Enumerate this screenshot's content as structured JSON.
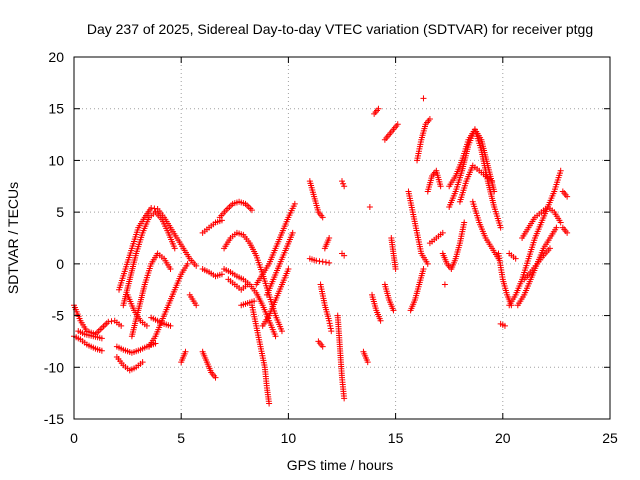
{
  "chart_data": {
    "type": "scatter",
    "title": "Day 237 of 2025, Sidereal Day-to-day VTEC variation (SDTVAR) for receiver ptgg",
    "xlabel": "GPS time / hours",
    "ylabel": "SDTVAR / TECUs",
    "xlim": [
      0,
      25
    ],
    "ylim": [
      -15,
      20
    ],
    "xticks": [
      0,
      5,
      10,
      15,
      20,
      25
    ],
    "yticks": [
      -15,
      -10,
      -5,
      0,
      5,
      10,
      15,
      20
    ],
    "grid": true,
    "marker": "plus",
    "marker_color": "#ff0000",
    "segments": [
      {
        "x": [
          0.0,
          0.3,
          0.6,
          1.0,
          1.3,
          1.6,
          1.9,
          2.2
        ],
        "y": [
          -4.0,
          -5.5,
          -6.5,
          -6.8,
          -6.2,
          -5.6,
          -5.5,
          -6.0
        ]
      },
      {
        "x": [
          0.0,
          0.3,
          0.6,
          1.0,
          1.3
        ],
        "y": [
          -7.0,
          -7.3,
          -7.8,
          -8.2,
          -8.4
        ]
      },
      {
        "x": [
          0.2,
          0.5,
          0.9,
          1.3
        ],
        "y": [
          -6.5,
          -6.8,
          -7.0,
          -7.2
        ]
      },
      {
        "x": [
          2.0,
          2.3,
          2.6,
          2.9,
          3.2
        ],
        "y": [
          -9.0,
          -9.8,
          -10.3,
          -10.0,
          -9.5
        ]
      },
      {
        "x": [
          2.0,
          2.3,
          2.7,
          3.1,
          3.4,
          3.8
        ],
        "y": [
          -8.0,
          -8.3,
          -8.6,
          -8.3,
          -8.0,
          -7.7
        ]
      },
      {
        "x": [
          2.1,
          2.4,
          2.7,
          3.0,
          3.3,
          3.6,
          3.9,
          4.2,
          4.5,
          4.8,
          5.1,
          5.4,
          5.7
        ],
        "y": [
          -2.5,
          -0.5,
          1.5,
          3.5,
          4.5,
          5.4,
          5.3,
          4.5,
          3.5,
          2.5,
          1.5,
          0.5,
          -0.2
        ]
      },
      {
        "x": [
          2.3,
          2.6,
          2.9,
          3.2,
          3.5,
          3.8,
          4.1,
          4.4,
          4.7
        ],
        "y": [
          -4.0,
          -1.5,
          1.0,
          3.0,
          4.5,
          5.0,
          4.3,
          3.0,
          1.5
        ]
      },
      {
        "x": [
          2.7,
          3.0,
          3.3,
          3.6,
          3.9,
          4.2,
          4.5
        ],
        "y": [
          -7.0,
          -4.5,
          -2.0,
          0.0,
          1.0,
          0.5,
          -0.5
        ]
      },
      {
        "x": [
          2.5,
          2.8,
          3.1,
          3.4
        ],
        "y": [
          -3.0,
          -4.5,
          -5.5,
          -6.0
        ]
      },
      {
        "x": [
          3.5,
          3.8,
          4.1,
          4.4,
          4.7,
          5.0,
          5.3
        ],
        "y": [
          -8.0,
          -7.0,
          -5.5,
          -4.0,
          -2.5,
          -1.0,
          0.0
        ]
      },
      {
        "x": [
          3.6,
          3.9,
          4.2,
          4.5
        ],
        "y": [
          -5.2,
          -5.5,
          -5.8,
          -6.0
        ]
      },
      {
        "x": [
          5.0,
          5.2
        ],
        "y": [
          -9.5,
          -8.5
        ]
      },
      {
        "x": [
          5.4,
          5.7
        ],
        "y": [
          -3.0,
          -4.0
        ]
      },
      {
        "x": [
          6.0,
          6.2,
          6.4,
          6.6
        ],
        "y": [
          -8.5,
          -9.5,
          -10.5,
          -11.0
        ]
      },
      {
        "x": [
          6.0,
          6.3,
          6.6,
          6.9
        ],
        "y": [
          3.0,
          3.5,
          4.0,
          4.2
        ]
      },
      {
        "x": [
          6.0,
          6.3,
          6.6,
          6.9
        ],
        "y": [
          -0.5,
          -0.8,
          -1.2,
          -1.0
        ]
      },
      {
        "x": [
          6.8,
          7.1,
          7.4,
          7.7,
          8.0,
          8.3
        ],
        "y": [
          4.5,
          5.2,
          5.8,
          6.0,
          5.8,
          5.2
        ]
      },
      {
        "x": [
          7.0,
          7.3,
          7.6,
          7.9,
          8.2,
          8.5,
          8.8,
          9.1,
          9.4,
          9.7
        ],
        "y": [
          1.5,
          2.5,
          3.0,
          2.8,
          2.0,
          0.8,
          -1.0,
          -3.0,
          -5.0,
          -6.5
        ]
      },
      {
        "x": [
          7.0,
          7.3,
          7.6,
          7.9,
          8.2,
          8.5,
          8.8,
          9.1,
          9.4
        ],
        "y": [
          -0.5,
          -0.8,
          -1.2,
          -1.5,
          -2.0,
          -2.8,
          -4.0,
          -5.5,
          -7.0
        ]
      },
      {
        "x": [
          7.2,
          7.5,
          7.8,
          8.1
        ],
        "y": [
          -1.5,
          -2.0,
          -2.5,
          -2.0
        ]
      },
      {
        "x": [
          8.3,
          8.5,
          8.7,
          8.9,
          9.0,
          9.1
        ],
        "y": [
          -4.0,
          -6.0,
          -8.0,
          -10.0,
          -12.0,
          -13.5
        ]
      },
      {
        "x": [
          8.5,
          8.8,
          9.1,
          9.4,
          9.7,
          10.0,
          10.3
        ],
        "y": [
          -2.0,
          -1.0,
          0.0,
          1.5,
          3.0,
          4.5,
          5.8
        ]
      },
      {
        "x": [
          8.8,
          9.1,
          9.4,
          9.7,
          10.0
        ],
        "y": [
          -6.0,
          -5.0,
          -3.5,
          -2.0,
          -0.5
        ]
      },
      {
        "x": [
          9.0,
          9.3,
          9.6,
          9.9,
          10.2
        ],
        "y": [
          -3.0,
          -1.5,
          0.0,
          1.5,
          3.0
        ]
      },
      {
        "x": [
          7.8,
          8.1,
          8.4
        ],
        "y": [
          -4.0,
          -3.8,
          -3.6
        ]
      },
      {
        "x": [
          11.0,
          11.2,
          11.4,
          11.6
        ],
        "y": [
          8.0,
          6.5,
          5.0,
          4.5
        ]
      },
      {
        "x": [
          11.0,
          11.3,
          11.6,
          11.9
        ],
        "y": [
          0.5,
          0.3,
          0.2,
          0.1
        ]
      },
      {
        "x": [
          11.5,
          11.7,
          11.9,
          12.0
        ],
        "y": [
          -2.0,
          -4.0,
          -5.5,
          -6.5
        ]
      },
      {
        "x": [
          11.4,
          11.6
        ],
        "y": [
          -7.5,
          -8.0
        ]
      },
      {
        "x": [
          11.7,
          11.9
        ],
        "y": [
          1.5,
          2.5
        ]
      },
      {
        "x": [
          12.3,
          12.4,
          12.5,
          12.6
        ],
        "y": [
          -5.0,
          -8.0,
          -11.0,
          -13.0
        ]
      },
      {
        "x": [
          12.5,
          12.6
        ],
        "y": [
          8.0,
          7.5
        ]
      },
      {
        "x": [
          12.5,
          12.6
        ],
        "y": [
          1.0,
          0.8
        ]
      },
      {
        "x": [
          13.5,
          13.7
        ],
        "y": [
          -8.5,
          -9.5
        ]
      },
      {
        "x": [
          13.8
        ],
        "y": [
          5.5
        ]
      },
      {
        "x": [
          13.9,
          14.1,
          14.3
        ],
        "y": [
          -3.0,
          -4.5,
          -5.5
        ]
      },
      {
        "x": [
          14.0,
          14.2
        ],
        "y": [
          14.5,
          15.0
        ]
      },
      {
        "x": [
          14.5,
          14.7,
          14.9,
          15.1
        ],
        "y": [
          12.0,
          12.5,
          13.0,
          13.5
        ]
      },
      {
        "x": [
          14.5,
          14.7,
          14.9
        ],
        "y": [
          -2.0,
          -3.5,
          -4.5
        ]
      },
      {
        "x": [
          14.8,
          14.9,
          15.0
        ],
        "y": [
          2.5,
          1.0,
          -0.5
        ]
      },
      {
        "x": [
          16.0,
          16.2,
          16.4,
          16.6
        ],
        "y": [
          10.0,
          12.0,
          13.5,
          14.0
        ]
      },
      {
        "x": [
          16.3
        ],
        "y": [
          16.0
        ]
      },
      {
        "x": [
          15.7,
          15.9,
          16.1,
          16.3
        ],
        "y": [
          -4.5,
          -3.5,
          -2.0,
          -0.5
        ]
      },
      {
        "x": [
          15.6,
          15.8,
          16.0,
          16.2,
          16.5
        ],
        "y": [
          7.0,
          5.0,
          3.0,
          1.0,
          0.0
        ]
      },
      {
        "x": [
          16.5,
          16.7,
          16.9,
          17.1
        ],
        "y": [
          7.0,
          8.5,
          9.0,
          7.5
        ]
      },
      {
        "x": [
          16.6,
          16.9,
          17.2
        ],
        "y": [
          2.0,
          2.5,
          3.0
        ]
      },
      {
        "x": [
          17.3
        ],
        "y": [
          -2.0
        ]
      },
      {
        "x": [
          17.2,
          17.4,
          17.6,
          17.8,
          18.0,
          18.2
        ],
        "y": [
          1.0,
          0.0,
          -0.5,
          0.5,
          2.0,
          4.0
        ]
      },
      {
        "x": [
          17.5,
          17.8,
          18.1,
          18.4,
          18.7,
          19.0,
          19.3,
          19.6
        ],
        "y": [
          5.5,
          7.0,
          9.0,
          11.5,
          13.0,
          12.0,
          9.5,
          7.0
        ]
      },
      {
        "x": [
          17.5,
          17.8,
          18.1,
          18.4,
          18.7,
          19.0,
          19.3,
          19.6,
          19.9
        ],
        "y": [
          7.5,
          8.5,
          10.0,
          12.0,
          13.0,
          11.0,
          8.0,
          5.5,
          3.5
        ]
      },
      {
        "x": [
          18.0,
          18.3,
          18.6,
          18.9,
          19.2,
          19.5
        ],
        "y": [
          6.0,
          8.0,
          9.5,
          9.0,
          8.5,
          8.0
        ]
      },
      {
        "x": [
          18.6,
          18.9,
          19.2,
          19.5,
          19.8
        ],
        "y": [
          6.0,
          4.0,
          2.5,
          1.5,
          0.5
        ]
      },
      {
        "x": [
          19.8,
          20.0,
          20.2,
          20.4
        ],
        "y": [
          1.0,
          -1.5,
          -3.0,
          -4.0
        ]
      },
      {
        "x": [
          19.9,
          20.1
        ],
        "y": [
          -5.8,
          -6.0
        ]
      },
      {
        "x": [
          20.3,
          20.6,
          20.9,
          21.2,
          21.5,
          21.8,
          22.1,
          22.4,
          22.7
        ],
        "y": [
          -4.0,
          -3.0,
          -1.5,
          0.5,
          2.5,
          4.0,
          5.5,
          7.0,
          9.0
        ]
      },
      {
        "x": [
          20.7,
          21.0,
          21.3,
          21.6,
          21.9,
          22.2,
          22.5
        ],
        "y": [
          -4.0,
          -3.0,
          -1.5,
          0.0,
          1.5,
          2.5,
          3.5
        ]
      },
      {
        "x": [
          20.9,
          21.2,
          21.5,
          21.8,
          22.1,
          22.4,
          22.7
        ],
        "y": [
          2.5,
          3.5,
          4.5,
          5.0,
          5.5,
          5.0,
          4.0
        ]
      },
      {
        "x": [
          21.0,
          21.3,
          21.6,
          21.9,
          22.2
        ],
        "y": [
          -1.5,
          -0.8,
          0.0,
          0.8,
          1.5
        ]
      },
      {
        "x": [
          20.3,
          20.6
        ],
        "y": [
          1.0,
          0.5
        ]
      },
      {
        "x": [
          22.8,
          23.0
        ],
        "y": [
          7.0,
          6.5
        ]
      },
      {
        "x": [
          22.8,
          23.0
        ],
        "y": [
          3.5,
          3.0
        ]
      }
    ]
  }
}
